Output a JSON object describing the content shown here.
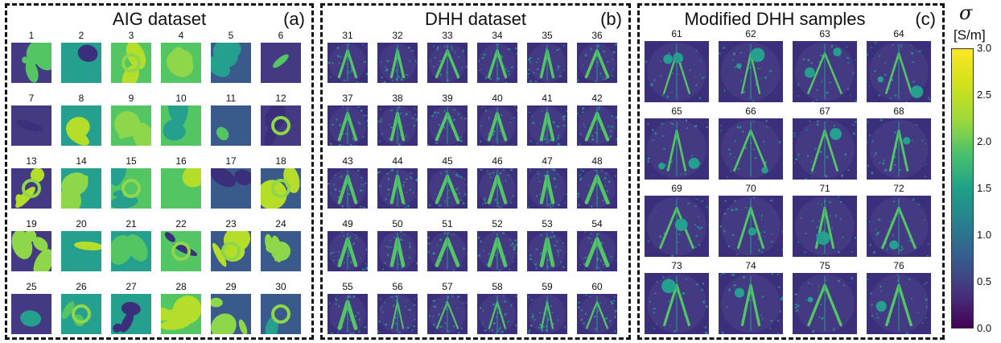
{
  "panels": [
    {
      "title": "AIG dataset",
      "tag": "(a)",
      "first": 1,
      "cols": 6,
      "rows": 5
    },
    {
      "title": "DHH dataset",
      "tag": "(b)",
      "first": 31,
      "cols": 6,
      "rows": 5
    },
    {
      "title": "Modified DHH samples",
      "tag": "(c)",
      "first": 61,
      "cols": 4,
      "rows": 4
    }
  ],
  "colorbar": {
    "symbol": "σ",
    "unit": "[S/m]",
    "ticks": [
      "3.0",
      "2.5",
      "2.0",
      "1.5",
      "1.0",
      "0.5",
      "0.0"
    ],
    "range": [
      0.0,
      3.0
    ],
    "colormap": "viridis"
  },
  "colors": {
    "background_dark": "#3b2f7c",
    "background_purple": "#433a83",
    "teal": "#25a08e",
    "green": "#54c563",
    "light_green": "#8ed74a",
    "yellow_green": "#b5de2b",
    "blue": "#3a5a8c"
  }
}
